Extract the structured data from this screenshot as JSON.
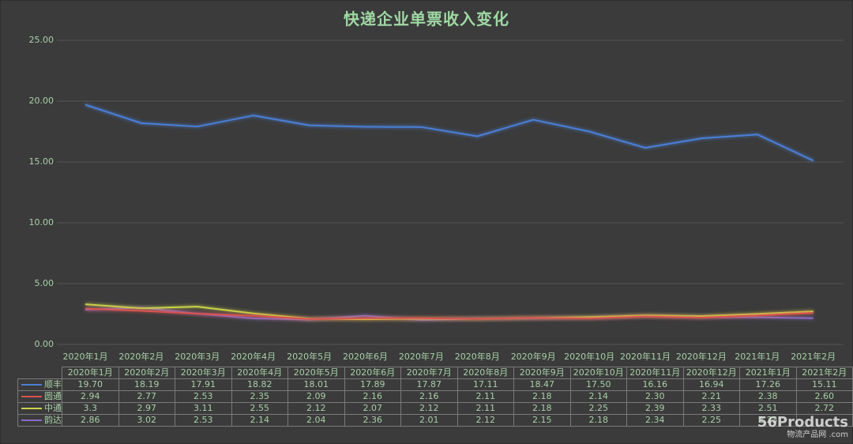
{
  "chart_data": {
    "type": "line",
    "title": "快递企业单票收入变化",
    "xlabel": "",
    "ylabel": "",
    "ylim": [
      0,
      25
    ],
    "yticks": [
      "0.00",
      "5.00",
      "10.00",
      "15.00",
      "20.00",
      "25.00"
    ],
    "grid": true,
    "legend_position": "data-table",
    "categories": [
      "2020年1月",
      "2020年2月",
      "2020年3月",
      "2020年4月",
      "2020年5月",
      "2020年6月",
      "2020年7月",
      "2020年8月",
      "2020年9月",
      "2020年10月",
      "2020年11月",
      "2020年12月",
      "2021年1月",
      "2021年2月"
    ],
    "series": [
      {
        "name": "顺丰",
        "color": "#4a7fd6",
        "values": [
          19.7,
          18.19,
          17.91,
          18.82,
          18.01,
          17.89,
          17.87,
          17.11,
          18.47,
          17.5,
          16.16,
          16.94,
          17.26,
          15.11
        ],
        "display": [
          "19.70",
          "18.19",
          "17.91",
          "18.82",
          "18.01",
          "17.89",
          "17.87",
          "17.11",
          "18.47",
          "17.50",
          "16.16",
          "16.94",
          "17.26",
          "15.11"
        ]
      },
      {
        "name": "圆通",
        "color": "#d9534f",
        "values": [
          2.94,
          2.77,
          2.53,
          2.35,
          2.09,
          2.16,
          2.16,
          2.11,
          2.18,
          2.14,
          2.3,
          2.21,
          2.38,
          2.6
        ],
        "display": [
          "2.94",
          "2.77",
          "2.53",
          "2.35",
          "2.09",
          "2.16",
          "2.16",
          "2.11",
          "2.18",
          "2.14",
          "2.30",
          "2.21",
          "2.38",
          "2.60"
        ]
      },
      {
        "name": "中通",
        "color": "#c9d34a",
        "values": [
          3.3,
          2.97,
          3.11,
          2.55,
          2.12,
          2.07,
          2.12,
          2.11,
          2.18,
          2.25,
          2.39,
          2.33,
          2.51,
          2.72
        ],
        "display": [
          "3.3",
          "2.97",
          "3.11",
          "2.55",
          "2.12",
          "2.07",
          "2.12",
          "2.11",
          "2.18",
          "2.25",
          "2.39",
          "2.33",
          "2.51",
          "2.72"
        ]
      },
      {
        "name": "韵达",
        "color": "#8a6cc4",
        "values": [
          2.86,
          3.02,
          2.53,
          2.14,
          2.04,
          2.36,
          2.01,
          2.12,
          2.15,
          2.18,
          2.34,
          2.25,
          2.23,
          2.16
        ],
        "display": [
          "2.86",
          "3.02",
          "2.53",
          "2.14",
          "2.04",
          "2.36",
          "2.01",
          "2.12",
          "2.15",
          "2.18",
          "2.34",
          "2.25",
          "2.23",
          ""
        ]
      }
    ]
  },
  "watermark": {
    "main": "56Products",
    "sub": "物流产品网 .com"
  }
}
